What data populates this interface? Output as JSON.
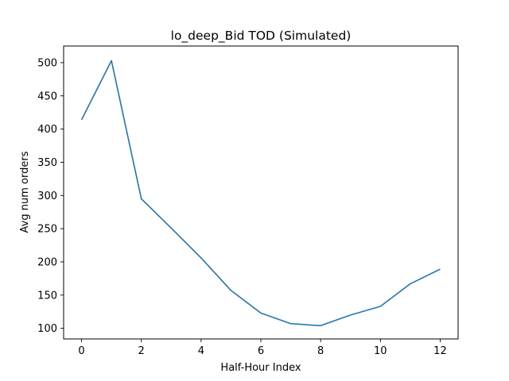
{
  "chart_data": {
    "type": "line",
    "title": "lo_deep_Bid TOD (Simulated)",
    "xlabel": "Half-Hour Index",
    "ylabel": "Avg num orders",
    "x": [
      0,
      1,
      2,
      3,
      4,
      5,
      6,
      7,
      8,
      9,
      10,
      11,
      12
    ],
    "series": [
      {
        "values": [
          414,
          503,
          295,
          251,
          206,
          157,
          123,
          107,
          104,
          120,
          133,
          167,
          189
        ],
        "color": "#1f77b4"
      }
    ],
    "xlim": [
      -0.6,
      12.6
    ],
    "ylim": [
      84,
      525
    ],
    "xticks": [
      0,
      2,
      4,
      6,
      8,
      10,
      12
    ],
    "yticks": [
      100,
      150,
      200,
      250,
      300,
      350,
      400,
      450,
      500
    ],
    "grid": false,
    "legend": "none"
  }
}
